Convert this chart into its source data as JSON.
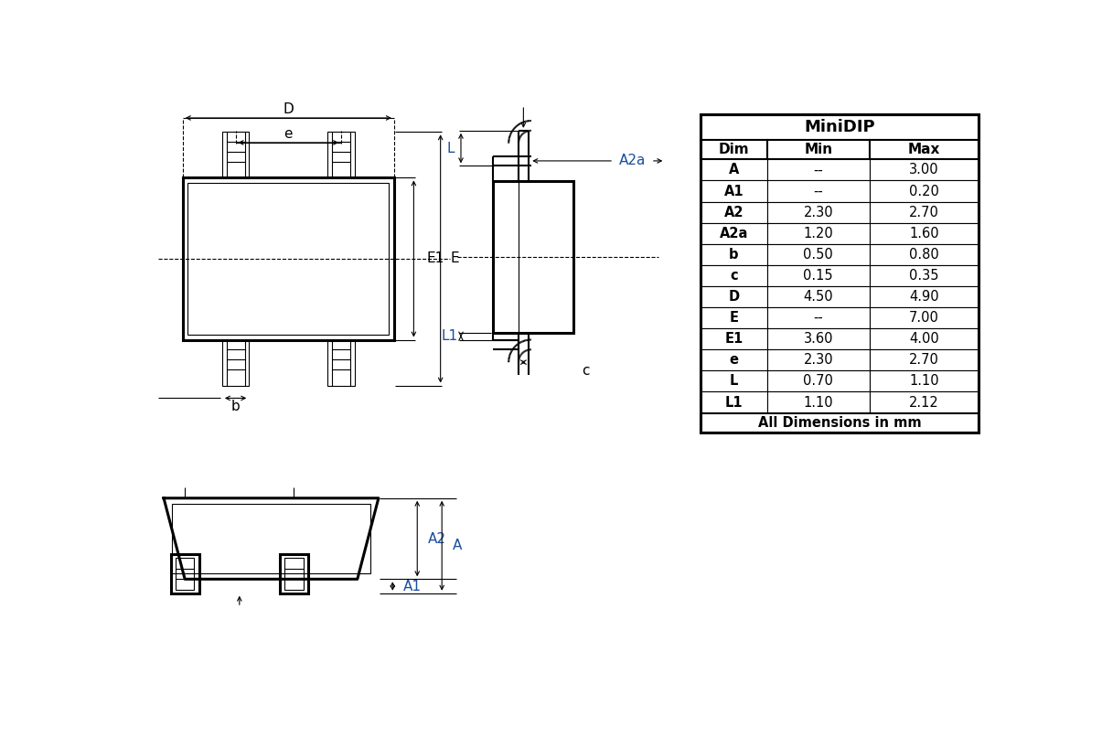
{
  "title": "MiniDIP",
  "table_headers": [
    "Dim",
    "Min",
    "Max"
  ],
  "table_rows": [
    [
      "A",
      "--",
      "3.00"
    ],
    [
      "A1",
      "--",
      "0.20"
    ],
    [
      "A2",
      "2.30",
      "2.70"
    ],
    [
      "A2a",
      "1.20",
      "1.60"
    ],
    [
      "b",
      "0.50",
      "0.80"
    ],
    [
      "c",
      "0.15",
      "0.35"
    ],
    [
      "D",
      "4.50",
      "4.90"
    ],
    [
      "E",
      "--",
      "7.00"
    ],
    [
      "E1",
      "3.60",
      "4.00"
    ],
    [
      "e",
      "2.30",
      "2.70"
    ],
    [
      "L",
      "0.70",
      "1.10"
    ],
    [
      "L1",
      "1.10",
      "2.12"
    ]
  ],
  "footer": "All Dimensions in mm",
  "bg_color": "#ffffff"
}
